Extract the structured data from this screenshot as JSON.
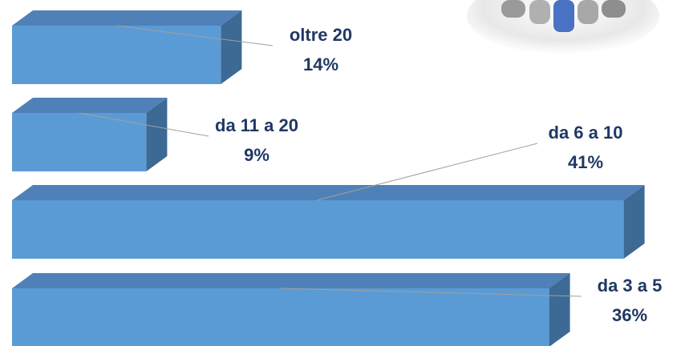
{
  "chart_data": {
    "type": "bar3d",
    "orientation": "horizontal",
    "categories": [
      "oltre 20",
      "da 11 a 20",
      "da 6 a 10",
      "da 3 a 5"
    ],
    "values": [
      14,
      9,
      41,
      36
    ],
    "value_labels": [
      "14%",
      "9%",
      "41%",
      "36%"
    ],
    "color": "#5b9bd5"
  }
}
